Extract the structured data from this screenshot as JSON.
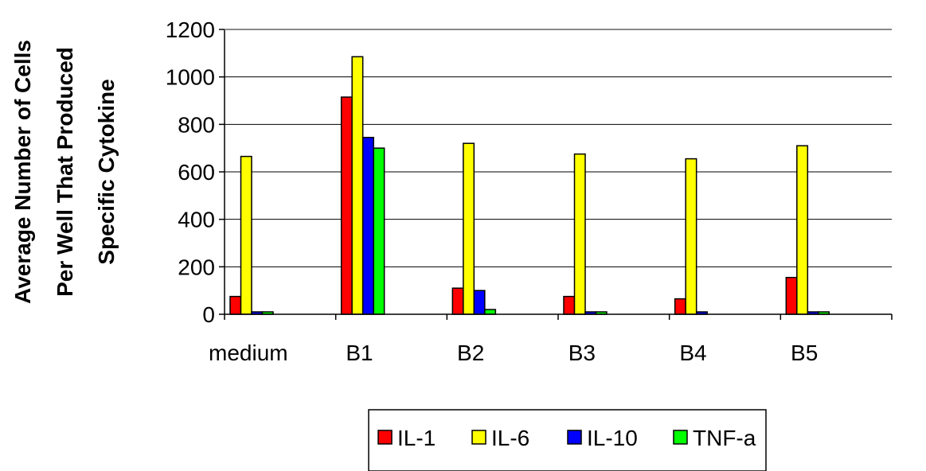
{
  "chart_data": {
    "type": "bar",
    "title": "",
    "xlabel": "",
    "ylabel_lines": [
      "Average Number of Cells",
      "Per Well That Produced",
      "Specific Cytokine"
    ],
    "ylim": [
      0,
      1200
    ],
    "yticks": [
      0,
      200,
      400,
      600,
      800,
      1000,
      1200
    ],
    "categories": [
      "medium",
      "B1",
      "B2",
      "B3",
      "B4",
      "B5"
    ],
    "series": [
      {
        "name": "IL-1",
        "color": "#ff0000",
        "values": [
          75,
          915,
          110,
          75,
          65,
          155
        ]
      },
      {
        "name": "IL-6",
        "color": "#ffff00",
        "values": [
          665,
          1085,
          720,
          675,
          655,
          710
        ]
      },
      {
        "name": "IL-10",
        "color": "#0000ff",
        "values": [
          5,
          745,
          100,
          5,
          5,
          5
        ]
      },
      {
        "name": "TNF-a",
        "color": "#00ff00",
        "values": [
          5,
          700,
          20,
          5,
          0,
          5
        ]
      }
    ],
    "grid": true,
    "legend_position": "bottom-center"
  }
}
